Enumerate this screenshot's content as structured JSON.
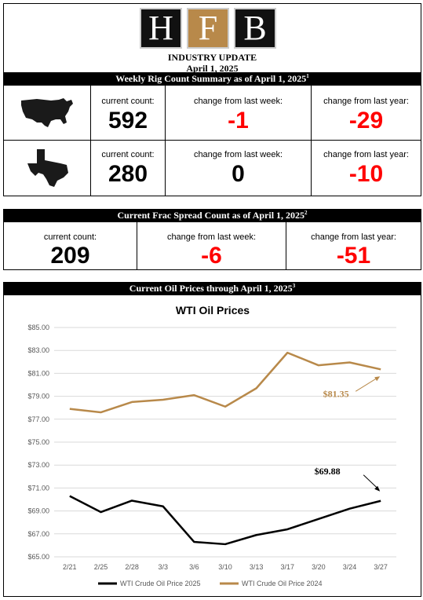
{
  "header": {
    "logo_letters": [
      "H",
      "F",
      "B"
    ],
    "title": "INDUSTRY UPDATE",
    "date": "April 1, 2025"
  },
  "rig_section": {
    "title": "Weekly Rig Count Summary as of April 1, 2025",
    "footnote": "1",
    "rows": [
      {
        "region_icon": "us-map-icon",
        "current_label": "current count:",
        "current_value": "592",
        "week_label": "change from last week:",
        "week_value": "-1",
        "year_label": "change from last year:",
        "year_value": "-29"
      },
      {
        "region_icon": "texas-map-icon",
        "current_label": "current count:",
        "current_value": "280",
        "week_label": "change from last week:",
        "week_value": "0",
        "year_label": "change from last year:",
        "year_value": "-10"
      }
    ]
  },
  "frac_section": {
    "title": "Current Frac Spread Count as of April 1, 2025",
    "footnote": "2",
    "current_label": "current count:",
    "current_value": "209",
    "week_label": "change from last week:",
    "week_value": "-6",
    "year_label": "change from last year:",
    "year_value": "-51"
  },
  "oil_section": {
    "title": "Current Oil Prices through April 1, 2025",
    "footnote": "3"
  },
  "colors": {
    "negative": "#ff0000",
    "gold": "#b8894a",
    "series_2025": "#000000",
    "series_2024": "#b8894a"
  },
  "chart_data": {
    "type": "line",
    "title": "WTI Oil Prices",
    "categories": [
      "2/21",
      "2/25",
      "2/28",
      "3/3",
      "3/6",
      "3/10",
      "3/13",
      "3/17",
      "3/20",
      "3/24",
      "3/27"
    ],
    "series": [
      {
        "name": "WTI Crude Oil Price 2025",
        "color": "#000000",
        "values": [
          70.3,
          68.9,
          69.9,
          69.4,
          66.3,
          66.1,
          66.9,
          67.4,
          68.3,
          69.2,
          69.88
        ]
      },
      {
        "name": "WTI Crude Oil Price 2024",
        "color": "#b8894a",
        "values": [
          77.9,
          77.6,
          78.5,
          78.7,
          79.1,
          78.1,
          79.7,
          82.8,
          81.7,
          81.95,
          81.35
        ]
      }
    ],
    "y_ticks": [
      "$65.00",
      "$67.00",
      "$69.00",
      "$71.00",
      "$73.00",
      "$75.00",
      "$77.00",
      "$79.00",
      "$81.00",
      "$83.00",
      "$85.00"
    ],
    "ylim": [
      65,
      85
    ],
    "grid": true,
    "legend_position": "bottom",
    "annotations": [
      {
        "text": "$69.88",
        "series": "WTI Crude Oil Price 2025",
        "color": "#000000"
      },
      {
        "text": "$81.35",
        "series": "WTI Crude Oil Price 2024",
        "color": "#b8894a"
      }
    ]
  }
}
